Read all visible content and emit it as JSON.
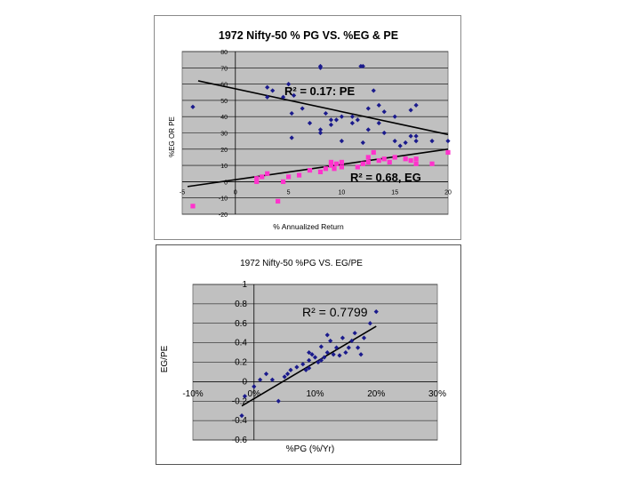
{
  "charts": {
    "top": {
      "title": "1972 Nifty-50 % PG VS. %EG & PE",
      "xlabel": "% Annualized Return",
      "ylabel": "%EG OR PE",
      "r2_pe_label": "R² = 0.17: PE",
      "r2_eg_label": "R² = 0.68, EG",
      "x_ticks": [
        "-5",
        "0",
        "5",
        "10",
        "15",
        "20"
      ],
      "y_ticks": [
        "-20",
        "-10",
        "0",
        "10",
        "20",
        "30",
        "40",
        "50",
        "60",
        "70",
        "80"
      ]
    },
    "bottom": {
      "title": "1972 Nifty-50 %PG VS. EG/PE",
      "xlabel": "%PG (%/Yr)",
      "ylabel": "EG/PE",
      "r2_label": "R² = 0.7799",
      "x_ticks": [
        "-10%",
        "0%",
        "10%",
        "20%",
        "30%"
      ],
      "y_ticks": [
        "-0.6",
        "-0.4",
        "-0.2",
        "0",
        "0.2",
        "0.4",
        "0.6",
        "0.8",
        "1"
      ]
    }
  },
  "colors": {
    "plot_bg": "#c0c0c0",
    "pe_series": "#1a1a8c",
    "eg_series": "#ff33cc",
    "scatter_series": "#1a1a8c",
    "trend_line": "#000000"
  },
  "chart_data": [
    {
      "type": "scatter",
      "title": "1972 Nifty-50 % PG VS. %EG & PE",
      "xlabel": "% Annualized Return",
      "ylabel": "%EG OR PE",
      "xlim": [
        -5,
        20
      ],
      "ylim": [
        -20,
        80
      ],
      "grid": true,
      "series": [
        {
          "name": "PE",
          "marker": "diamond",
          "points": [
            [
              -4,
              46
            ],
            [
              3,
              58
            ],
            [
              3.5,
              56
            ],
            [
              5,
              60
            ],
            [
              5.5,
              53
            ],
            [
              4.5,
              52
            ],
            [
              5.3,
              42
            ],
            [
              6.3,
              45
            ],
            [
              7,
              36
            ],
            [
              8,
              30
            ],
            [
              8,
              32
            ],
            [
              8,
              70
            ],
            [
              8,
              71
            ],
            [
              8.5,
              42
            ],
            [
              9,
              38
            ],
            [
              9,
              35
            ],
            [
              9.5,
              38
            ],
            [
              10,
              40
            ],
            [
              10,
              25
            ],
            [
              11,
              40
            ],
            [
              11.5,
              38
            ],
            [
              11,
              36
            ],
            [
              11.8,
              71
            ],
            [
              12,
              71
            ],
            [
              12,
              24
            ],
            [
              12.5,
              32
            ],
            [
              12.5,
              45
            ],
            [
              13,
              56
            ],
            [
              13.5,
              47
            ],
            [
              13.5,
              36
            ],
            [
              14,
              43
            ],
            [
              14,
              30
            ],
            [
              15,
              40
            ],
            [
              15,
              25
            ],
            [
              15.5,
              22
            ],
            [
              16,
              24
            ],
            [
              16.5,
              28
            ],
            [
              16.5,
              44
            ],
            [
              17,
              47
            ],
            [
              17,
              25
            ],
            [
              17,
              28
            ],
            [
              18.5,
              25
            ],
            [
              20,
              25
            ],
            [
              5.3,
              27
            ],
            [
              3,
              52
            ]
          ],
          "trend": {
            "r2": 0.17,
            "label": "R² = 0.17: PE",
            "from": [
              -3.5,
              62
            ],
            "to": [
              20,
              29
            ]
          }
        },
        {
          "name": "EG",
          "marker": "square",
          "points": [
            [
              -4,
              -15
            ],
            [
              2,
              0
            ],
            [
              2.5,
              3
            ],
            [
              2,
              2
            ],
            [
              3,
              5
            ],
            [
              4,
              -12
            ],
            [
              5,
              3
            ],
            [
              6,
              4
            ],
            [
              7,
              7
            ],
            [
              8,
              6
            ],
            [
              8.5,
              8
            ],
            [
              9,
              10
            ],
            [
              9,
              12
            ],
            [
              9.5,
              11
            ],
            [
              9.3,
              8
            ],
            [
              10,
              12
            ],
            [
              10,
              9
            ],
            [
              11.5,
              9
            ],
            [
              12,
              11
            ],
            [
              12.5,
              15
            ],
            [
              12.5,
              12
            ],
            [
              13,
              18
            ],
            [
              13.5,
              13
            ],
            [
              14,
              14
            ],
            [
              14.5,
              12
            ],
            [
              15,
              15
            ],
            [
              16,
              14
            ],
            [
              16.5,
              13
            ],
            [
              17,
              14
            ],
            [
              17,
              11
            ],
            [
              18.5,
              11
            ],
            [
              20,
              18
            ],
            [
              4.5,
              0
            ]
          ],
          "trend": {
            "r2": 0.68,
            "label": "R² = 0.68, EG",
            "from": [
              -4.5,
              -3
            ],
            "to": [
              20,
              20
            ]
          }
        }
      ]
    },
    {
      "type": "scatter",
      "title": "1972 Nifty-50 %PG VS. EG/PE",
      "xlabel": "%PG (%/Yr)",
      "ylabel": "EG/PE",
      "xlim": [
        -10,
        30
      ],
      "ylim": [
        -0.6,
        1
      ],
      "grid": true,
      "series": [
        {
          "marker": "diamond",
          "points": [
            [
              -2,
              -0.35
            ],
            [
              -1.5,
              -0.15
            ],
            [
              0,
              -0.05
            ],
            [
              1,
              0.02
            ],
            [
              2,
              0.08
            ],
            [
              3,
              0.02
            ],
            [
              4,
              -0.2
            ],
            [
              5,
              0.05
            ],
            [
              5.5,
              0.08
            ],
            [
              6,
              0.12
            ],
            [
              7,
              0.15
            ],
            [
              8,
              0.18
            ],
            [
              8.5,
              0.12
            ],
            [
              9,
              0.22
            ],
            [
              9,
              0.3
            ],
            [
              9.5,
              0.28
            ],
            [
              10,
              0.25
            ],
            [
              10.5,
              0.2
            ],
            [
              11,
              0.22
            ],
            [
              11.5,
              0.25
            ],
            [
              12,
              0.3
            ],
            [
              12,
              0.48
            ],
            [
              12.5,
              0.42
            ],
            [
              13,
              0.28
            ],
            [
              13.5,
              0.35
            ],
            [
              14,
              0.27
            ],
            [
              14.5,
              0.45
            ],
            [
              15,
              0.3
            ],
            [
              15.5,
              0.35
            ],
            [
              16,
              0.42
            ],
            [
              16.5,
              0.5
            ],
            [
              17,
              0.35
            ],
            [
              17.5,
              0.28
            ],
            [
              18,
              0.45
            ],
            [
              19,
              0.6
            ],
            [
              20,
              0.72
            ],
            [
              9,
              0.14
            ],
            [
              11,
              0.36
            ]
          ],
          "trend": {
            "r2": 0.7799,
            "label": "R² = 0.7799",
            "from": [
              -2,
              -0.25
            ],
            "to": [
              20,
              0.57
            ]
          }
        }
      ]
    }
  ]
}
